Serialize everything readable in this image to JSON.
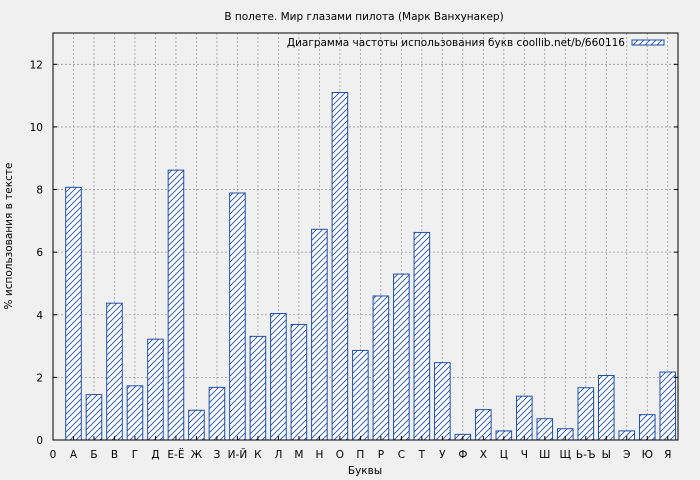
{
  "chart_data": {
    "type": "bar",
    "title": "В полете. Мир глазами пилота (Марк Ванхунакер)",
    "xlabel": "Буквы",
    "ylabel": "% использования в тексте",
    "legend": "Диаграмма частоты использования букв coollib.net/b/660116",
    "legend_position": "top-right",
    "x_start_label": "0",
    "categories": [
      "А",
      "Б",
      "В",
      "Г",
      "Д",
      "Е-Ё",
      "Ж",
      "З",
      "И-Й",
      "К",
      "Л",
      "М",
      "Н",
      "О",
      "П",
      "Р",
      "С",
      "Т",
      "У",
      "Ф",
      "Х",
      "Ц",
      "Ч",
      "Ш",
      "Щ",
      "Ь-Ъ",
      "Ы",
      "Э",
      "Ю",
      "Я"
    ],
    "values": [
      8.07,
      1.45,
      4.37,
      1.73,
      3.22,
      8.62,
      0.95,
      1.68,
      7.89,
      3.31,
      4.04,
      3.69,
      6.73,
      11.1,
      2.86,
      4.6,
      5.3,
      6.63,
      2.47,
      0.18,
      0.97,
      0.29,
      1.4,
      0.68,
      0.36,
      1.67,
      2.06,
      0.29,
      0.81,
      2.17
    ],
    "ylim": [
      0,
      13
    ],
    "yticks": [
      0,
      2,
      4,
      6,
      8,
      10,
      12
    ],
    "grid": true,
    "colors": {
      "bar_stroke": "#1f4fa8",
      "hatch": "#1f4fa8",
      "bar_fill": "#ffffff",
      "plot_background": "#f0f0f0",
      "grid": "#999999"
    }
  }
}
